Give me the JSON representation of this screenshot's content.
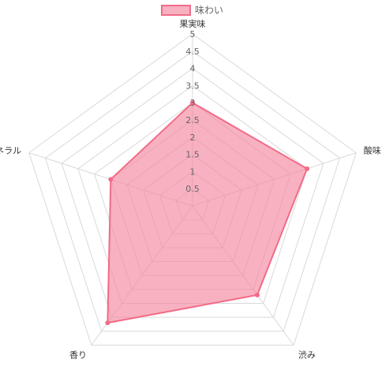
{
  "chart_data": {
    "type": "radar",
    "labels": [
      "果実味",
      "酸味",
      "渋み",
      "香り",
      "ミネラル"
    ],
    "series": [
      {
        "name": "味わい",
        "values": [
          3,
          3.5,
          3.2,
          4.2,
          2.5
        ],
        "fill": "#f4879e",
        "stroke": "#f26b87"
      }
    ],
    "scale": {
      "min": 0,
      "max": 5,
      "step": 0.5
    },
    "tick_labels": [
      "0.5",
      "1",
      "1.5",
      "2",
      "2.5",
      "3",
      "3.5",
      "4",
      "4.5",
      "5"
    ],
    "grid": true,
    "legend": "top"
  }
}
